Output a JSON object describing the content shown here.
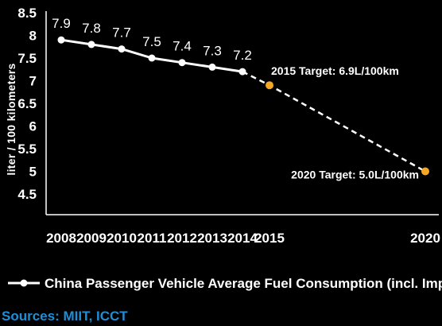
{
  "chart_data": {
    "type": "line",
    "ylabel": "liter / 100 kilometers",
    "ylim": [
      4.5,
      8.5
    ],
    "yticks": [
      "4.5",
      "5",
      "5.5",
      "6",
      "6.5",
      "7",
      "7.5",
      "8",
      "8.5"
    ],
    "x": [
      2008,
      2009,
      2010,
      2011,
      2012,
      2013,
      2014,
      2015,
      2020
    ],
    "xticks": [
      "2008",
      "2009",
      "2010",
      "2011",
      "2012",
      "2013",
      "2014",
      "2015",
      "2020"
    ],
    "series": [
      {
        "name": "China Passenger Vehicle Average Fuel Consumption (incl. Imports)",
        "x": [
          2008,
          2009,
          2010,
          2011,
          2012,
          2013,
          2014
        ],
        "values": [
          7.9,
          7.8,
          7.7,
          7.5,
          7.4,
          7.3,
          7.2
        ],
        "labels": [
          "7.9",
          "7.8",
          "7.7",
          "7.5",
          "7.4",
          "7.3",
          "7.2"
        ],
        "color": "#ffffff"
      }
    ],
    "targets": [
      {
        "x": 2015,
        "value": 6.9,
        "label": "2015 Target: 6.9L/100km",
        "color": "#f5a623"
      },
      {
        "x": 2020,
        "value": 5.0,
        "label": "2020 Target: 5.0L/100km",
        "color": "#f5a623"
      }
    ],
    "grid": false,
    "legend_position": "bottom"
  },
  "sources": "Sources: MIIT, ICCT"
}
